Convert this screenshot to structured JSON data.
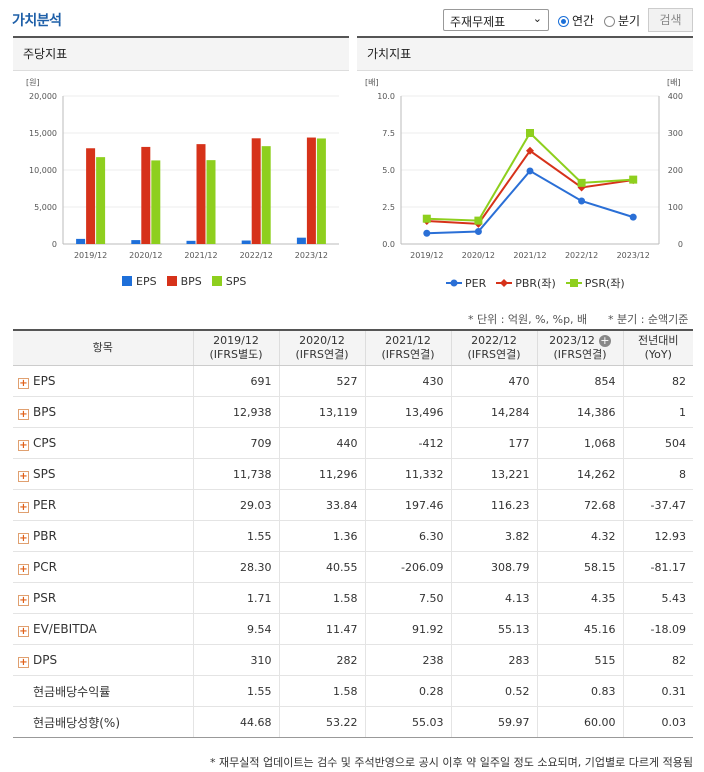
{
  "header": {
    "title": "가치분석",
    "select_value": "주재무제표",
    "radio_annual": "연간",
    "radio_quarter": "분기",
    "search_label": "검색"
  },
  "left_panel": {
    "title": "주당지표"
  },
  "right_panel": {
    "title": "가치지표"
  },
  "chart_data": [
    {
      "type": "bar",
      "title": "주당지표",
      "unit_label": "[원]",
      "categories": [
        "2019/12",
        "2020/12",
        "2021/12",
        "2022/12",
        "2023/12"
      ],
      "ylim": [
        0,
        20000
      ],
      "yticks": [
        "0",
        "5,000",
        "10,000",
        "15,000",
        "20,000"
      ],
      "series": [
        {
          "name": "EPS",
          "color": "#1e6fd9",
          "values": [
            691,
            527,
            430,
            470,
            854
          ]
        },
        {
          "name": "BPS",
          "color": "#d6321a",
          "values": [
            12938,
            13119,
            13496,
            14284,
            14386
          ]
        },
        {
          "name": "SPS",
          "color": "#8ecf1e",
          "values": [
            11738,
            11296,
            11332,
            13221,
            14262
          ]
        }
      ],
      "legend_position": "bottom"
    },
    {
      "type": "line",
      "title": "가치지표",
      "left_unit_label": "[배]",
      "right_unit_label": "[배]",
      "categories": [
        "2019/12",
        "2020/12",
        "2021/12",
        "2022/12",
        "2023/12"
      ],
      "ylim_left": [
        0,
        10
      ],
      "yticks_left": [
        "0.0",
        "2.5",
        "5.0",
        "7.5",
        "10.0"
      ],
      "ylim_right": [
        0,
        400
      ],
      "yticks_right": [
        "0",
        "100",
        "200",
        "300",
        "400"
      ],
      "series": [
        {
          "name": "PER",
          "axis": "right",
          "color": "#2a6fd6",
          "marker": "circle",
          "values": [
            29.03,
            33.84,
            197.46,
            116.23,
            72.68
          ]
        },
        {
          "name": "PBR(좌)",
          "axis": "left",
          "color": "#d6321a",
          "marker": "diamond",
          "values": [
            1.55,
            1.36,
            6.3,
            3.82,
            4.32
          ]
        },
        {
          "name": "PSR(좌)",
          "axis": "left",
          "color": "#8ecf1e",
          "marker": "square",
          "values": [
            1.71,
            1.58,
            7.5,
            4.13,
            4.35
          ]
        }
      ],
      "legend_position": "bottom"
    }
  ],
  "notes": {
    "unit": "* 단위 : 억원, %, %p, 배",
    "quarter": "* 분기 : 순액기준"
  },
  "table": {
    "col_item": "항목",
    "columns": [
      {
        "period": "2019/12",
        "basis": "(IFRS별도)"
      },
      {
        "period": "2020/12",
        "basis": "(IFRS연결)"
      },
      {
        "period": "2021/12",
        "basis": "(IFRS연결)"
      },
      {
        "period": "2022/12",
        "basis": "(IFRS연결)"
      },
      {
        "period": "2023/12",
        "basis": "(IFRS연결)"
      }
    ],
    "col_yoy": "전년대비",
    "col_yoy_sub": "(YoY)",
    "rows": [
      {
        "label": "EPS",
        "expand": true,
        "values": [
          "691",
          "527",
          "430",
          "470",
          "854"
        ],
        "yoy": "82"
      },
      {
        "label": "BPS",
        "expand": true,
        "values": [
          "12,938",
          "13,119",
          "13,496",
          "14,284",
          "14,386"
        ],
        "yoy": "1"
      },
      {
        "label": "CPS",
        "expand": true,
        "values": [
          "709",
          "440",
          "-412",
          "177",
          "1,068"
        ],
        "yoy": "504"
      },
      {
        "label": "SPS",
        "expand": true,
        "values": [
          "11,738",
          "11,296",
          "11,332",
          "13,221",
          "14,262"
        ],
        "yoy": "8"
      },
      {
        "label": "PER",
        "expand": true,
        "values": [
          "29.03",
          "33.84",
          "197.46",
          "116.23",
          "72.68"
        ],
        "yoy": "-37.47"
      },
      {
        "label": "PBR",
        "expand": true,
        "values": [
          "1.55",
          "1.36",
          "6.30",
          "3.82",
          "4.32"
        ],
        "yoy": "12.93"
      },
      {
        "label": "PCR",
        "expand": true,
        "values": [
          "28.30",
          "40.55",
          "-206.09",
          "308.79",
          "58.15"
        ],
        "yoy": "-81.17"
      },
      {
        "label": "PSR",
        "expand": true,
        "values": [
          "1.71",
          "1.58",
          "7.50",
          "4.13",
          "4.35"
        ],
        "yoy": "5.43"
      },
      {
        "label": "EV/EBITDA",
        "expand": true,
        "values": [
          "9.54",
          "11.47",
          "91.92",
          "55.13",
          "45.16"
        ],
        "yoy": "-18.09"
      },
      {
        "label": "DPS",
        "expand": true,
        "values": [
          "310",
          "282",
          "238",
          "283",
          "515"
        ],
        "yoy": "82"
      },
      {
        "label": "현금배당수익률",
        "expand": false,
        "values": [
          "1.55",
          "1.58",
          "0.28",
          "0.52",
          "0.83"
        ],
        "yoy": "0.31"
      },
      {
        "label": "현금배당성향(%)",
        "expand": false,
        "values": [
          "44.68",
          "53.22",
          "55.03",
          "59.97",
          "60.00"
        ],
        "yoy": "0.03"
      }
    ]
  },
  "footnote": "* 재무실적 업데이트는 검수 및 주석반영으로 공시 이후 약 일주일 정도 소요되며, 기업별로 다르게 적용됨"
}
